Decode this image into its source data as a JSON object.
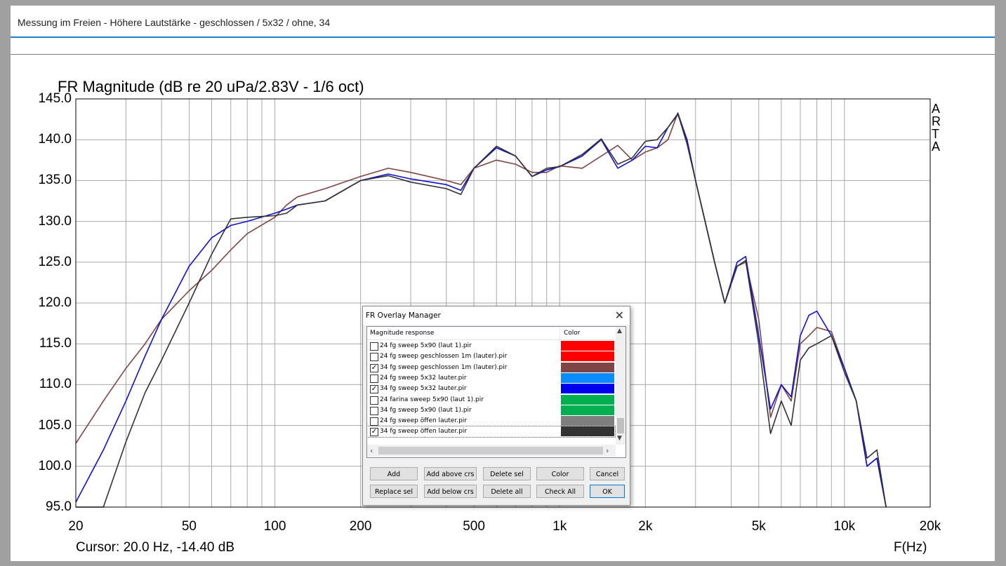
{
  "header": {
    "title": "Messung im Freien - Höhere Lautstärke - geschlossen / 5x32 / ohne, 34"
  },
  "chart_title": "FR Magnitude (dB re 20 uPa/2.83V - 1/6 oct)",
  "cursor_readout": "Cursor: 20.0 Hz, -14.40 dB",
  "x_axis_label": "F(Hz)",
  "watermark": [
    "A",
    "R",
    "T",
    "A"
  ],
  "y_ticks": [
    "145.0",
    "140.0",
    "135.0",
    "130.0",
    "125.0",
    "120.0",
    "115.0",
    "110.0",
    "105.0",
    "100.0",
    "95.0"
  ],
  "x_ticks": [
    "20",
    "50",
    "100",
    "200",
    "500",
    "1k",
    "2k",
    "5k",
    "10k",
    "20k"
  ],
  "chart_data": {
    "type": "line",
    "title": "FR Magnitude (dB re 20 uPa/2.83V - 1/6 oct)",
    "xlabel": "F(Hz)",
    "ylabel": "",
    "xscale": "log",
    "xlim": [
      20,
      20000
    ],
    "ylim": [
      95,
      145
    ],
    "grid": true,
    "series": [
      {
        "name": "34 fg sweep geschlossen 1m (lauter).pir",
        "color": "#7f4444",
        "x": [
          20,
          25,
          30,
          35,
          40,
          50,
          60,
          70,
          80,
          100,
          110,
          120,
          150,
          200,
          250,
          300,
          400,
          450,
          500,
          600,
          700,
          800,
          900,
          1000,
          1200,
          1400,
          1600,
          1800,
          2000,
          2200,
          2400,
          2600,
          2800,
          3000,
          3500,
          3800,
          4200,
          4500,
          5000,
          5500,
          6000,
          6500,
          7000,
          7500,
          8000,
          9000,
          10000,
          11000,
          12000,
          13000,
          14000
        ],
        "y": [
          102.8,
          108,
          112,
          115,
          118,
          121.5,
          124,
          126.5,
          128.5,
          130.5,
          132,
          133,
          134,
          135.5,
          136.5,
          136,
          135,
          134.5,
          136.5,
          137.5,
          137,
          136,
          136,
          136.8,
          136.5,
          138,
          139.3,
          137.5,
          138.5,
          139,
          140,
          143.3,
          140,
          135,
          125,
          120,
          124.5,
          125,
          118,
          106,
          110,
          108,
          115,
          116,
          117,
          116.5,
          112,
          108,
          100,
          101,
          95
        ]
      },
      {
        "name": "34 fg sweep 5x32 lauter.pir",
        "color": "#1010d0",
        "x": [
          20,
          25,
          30,
          35,
          40,
          50,
          60,
          70,
          80,
          100,
          110,
          120,
          150,
          200,
          250,
          300,
          400,
          450,
          500,
          600,
          700,
          800,
          900,
          1000,
          1200,
          1400,
          1600,
          1800,
          2000,
          2200,
          2400,
          2600,
          2800,
          3000,
          3500,
          3800,
          4200,
          4500,
          5000,
          5500,
          6000,
          6500,
          7000,
          7500,
          8000,
          9000,
          10000,
          11000,
          12000,
          13000,
          14000
        ],
        "y": [
          95.6,
          102,
          108,
          113.5,
          118,
          124.5,
          128,
          129.5,
          130,
          131,
          131.5,
          132,
          132.5,
          135,
          135.8,
          135.2,
          134.5,
          133.8,
          136.5,
          139,
          138,
          135.5,
          136.3,
          136.7,
          138,
          140,
          136.5,
          137.5,
          139.2,
          139,
          141.5,
          143.1,
          140,
          135,
          125,
          120,
          125,
          125.7,
          116,
          107,
          110,
          108.5,
          116,
          118.5,
          119,
          116,
          112,
          108,
          100,
          101,
          95
        ]
      },
      {
        "name": "34 fg sweep öffen lauter.pir",
        "color": "#333333",
        "x": [
          20,
          25,
          30,
          35,
          40,
          50,
          60,
          70,
          80,
          100,
          110,
          120,
          150,
          200,
          250,
          300,
          400,
          450,
          500,
          600,
          700,
          800,
          900,
          1000,
          1200,
          1400,
          1600,
          1800,
          2000,
          2200,
          2400,
          2600,
          2800,
          3000,
          3500,
          3800,
          4200,
          4500,
          5000,
          5500,
          6000,
          6500,
          7000,
          7500,
          8000,
          9000,
          10000,
          11000,
          12000,
          13000,
          14000
        ],
        "y": [
          89,
          95,
          103,
          109,
          113,
          120,
          126,
          130.3,
          130.5,
          130.7,
          131,
          132,
          132.5,
          135,
          135.6,
          134.8,
          134,
          133.3,
          136.5,
          139.2,
          138,
          135.5,
          136.5,
          136.7,
          138.2,
          140.1,
          137,
          137.8,
          139.8,
          140,
          141.5,
          143.2,
          139.5,
          135,
          125,
          120,
          124.5,
          125.2,
          115,
          104,
          108,
          105,
          113,
          114.5,
          115,
          116,
          111.5,
          108,
          101,
          102,
          95
        ]
      }
    ]
  },
  "dialog": {
    "title": "FR Overlay Manager",
    "close_glyph": "✕",
    "col_magnitude": "Magnitude response",
    "col_color": "Color",
    "rows": [
      {
        "label": "24 fg sweep 5x90 (laut 1).pir",
        "checked": false,
        "color": "#ff0000"
      },
      {
        "label": "24 fg sweep geschlossen 1m (lauter).pir",
        "checked": false,
        "color": "#ff0000"
      },
      {
        "label": "34 fg sweep geschlossen 1m (lauter).pir",
        "checked": true,
        "color": "#7f4444"
      },
      {
        "label": "24 fg sweep 5x32 lauter.pir",
        "checked": false,
        "color": "#0a8cff"
      },
      {
        "label": "34 fg sweep 5x32 lauter.pir",
        "checked": true,
        "color": "#0000ee"
      },
      {
        "label": "24 farina sweep 5x90 (laut 1).pir",
        "checked": false,
        "color": "#00b050"
      },
      {
        "label": "34 fg sweep 5x90 (laut 1).pir",
        "checked": false,
        "color": "#00b050"
      },
      {
        "label": "24 fg sweep öffen lauter.pir",
        "checked": false,
        "color": "#7f7f7f"
      },
      {
        "label": "34 fg sweep öffen lauter.pir",
        "checked": true,
        "color": "#333333"
      }
    ],
    "buttons": {
      "add": "Add",
      "add_above": "Add above crs",
      "delete_sel": "Delete sel",
      "color": "Color",
      "cancel": "Cancel",
      "replace_sel": "Replace sel",
      "add_below": "Add below crs",
      "delete_all": "Delete all",
      "check_all": "Check All",
      "ok": "OK"
    }
  }
}
